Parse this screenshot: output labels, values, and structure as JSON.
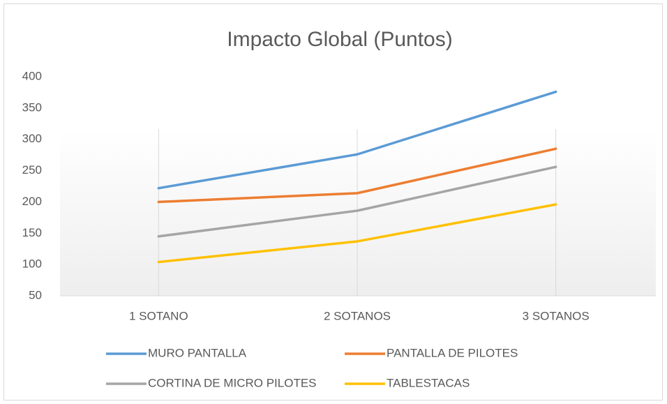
{
  "chart_data": {
    "type": "line",
    "title": "Impacto Global (Puntos)",
    "categories": [
      "1 SOTANO",
      "2 SOTANOS",
      "3 SOTANOS"
    ],
    "series": [
      {
        "name": "MURO PANTALLA",
        "color": "#5b9bd5",
        "values": [
          222,
          276,
          376
        ]
      },
      {
        "name": "PANTALLA DE PILOTES",
        "color": "#ed7d31",
        "values": [
          200,
          214,
          285
        ]
      },
      {
        "name": "CORTINA DE MICRO PILOTES",
        "color": "#a5a5a5",
        "values": [
          145,
          186,
          256
        ]
      },
      {
        "name": "TABLESTACAS",
        "color": "#ffc000",
        "values": [
          104,
          137,
          196
        ]
      }
    ],
    "ylim": [
      50,
      400
    ],
    "yticks": [
      50,
      100,
      150,
      200,
      250,
      300,
      350,
      400
    ],
    "xgrid": true,
    "legend": "bottom"
  }
}
